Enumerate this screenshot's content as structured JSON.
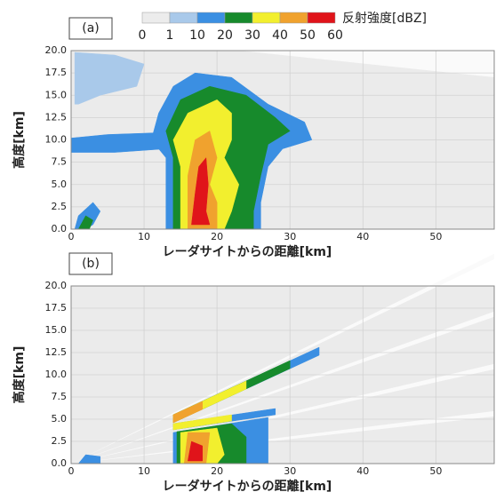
{
  "colorbar": {
    "title": "反射強度[dBZ]",
    "bounds": [
      0,
      1,
      10,
      20,
      30,
      40,
      50,
      60
    ],
    "colors": [
      "#ececec",
      "#a9c9ea",
      "#3b8fe2",
      "#178a2c",
      "#f2ef2e",
      "#f0a22e",
      "#e0141a"
    ]
  },
  "chart_data": [
    {
      "type": "rhi",
      "panel_label": "(a)",
      "xlabel": "レーダサイトからの距離[km]",
      "ylabel": "高度[km]",
      "xlim": [
        0,
        58
      ],
      "ylim": [
        0,
        20
      ],
      "xticks": [
        0,
        10,
        20,
        30,
        40,
        50
      ],
      "yticks": [
        {
          "value": 0,
          "label": "0.0"
        },
        2.5,
        {
          "value": 5,
          "label": "5.0"
        },
        7.5,
        {
          "value": 10,
          "label": "10.0"
        },
        12.5,
        {
          "value": 15,
          "label": "15.0"
        },
        17.5,
        {
          "value": 20,
          "label": "20.0"
        }
      ],
      "echoes": [
        {
          "level": 1,
          "points": [
            [
              0.5,
              14
            ],
            [
              0.5,
              19.8
            ],
            [
              6,
              19.5
            ],
            [
              10,
              18.5
            ],
            [
              9,
              16
            ],
            [
              4,
              15
            ],
            [
              1,
              14
            ]
          ]
        },
        {
          "level": 10,
          "points": [
            [
              0,
              8.6
            ],
            [
              0,
              10.2
            ],
            [
              5,
              10.6
            ],
            [
              12,
              10.8
            ],
            [
              13,
              9
            ],
            [
              6,
              8.6
            ]
          ]
        },
        {
          "level": 10,
          "points": [
            [
              13,
              0
            ],
            [
              13,
              8
            ],
            [
              11,
              10
            ],
            [
              12,
              13
            ],
            [
              14,
              16
            ],
            [
              17,
              17.5
            ],
            [
              22,
              17
            ],
            [
              27,
              14
            ],
            [
              32,
              12
            ],
            [
              33,
              10
            ],
            [
              29,
              9
            ],
            [
              27,
              7
            ],
            [
              26,
              3
            ],
            [
              26,
              0
            ]
          ]
        },
        {
          "level": 20,
          "points": [
            [
              14,
              0
            ],
            [
              14,
              8
            ],
            [
              13,
              11
            ],
            [
              15,
              14.5
            ],
            [
              19,
              16
            ],
            [
              24,
              15
            ],
            [
              28,
              12.5
            ],
            [
              30,
              11
            ],
            [
              27,
              9.5
            ],
            [
              26,
              6
            ],
            [
              25,
              2
            ],
            [
              25,
              0
            ]
          ]
        },
        {
          "level": 30,
          "points": [
            [
              15,
              0
            ],
            [
              15,
              7
            ],
            [
              14,
              10
            ],
            [
              16,
              13
            ],
            [
              20,
              14.5
            ],
            [
              22,
              13
            ],
            [
              22,
              10
            ],
            [
              21,
              8
            ],
            [
              23,
              5
            ],
            [
              22,
              2
            ],
            [
              21,
              0
            ]
          ]
        },
        {
          "level": 40,
          "points": [
            [
              16,
              0
            ],
            [
              16,
              6
            ],
            [
              17,
              10
            ],
            [
              19,
              11
            ],
            [
              20,
              8
            ],
            [
              19,
              5
            ],
            [
              20,
              3
            ],
            [
              20,
              0
            ]
          ]
        },
        {
          "level": 50,
          "points": [
            [
              16.5,
              0.5
            ],
            [
              17,
              4
            ],
            [
              17.5,
              7
            ],
            [
              18.5,
              8
            ],
            [
              18.8,
              5
            ],
            [
              18.5,
              2
            ],
            [
              19,
              0.5
            ]
          ]
        },
        {
          "level": 10,
          "points": [
            [
              0.5,
              0
            ],
            [
              1,
              1.5
            ],
            [
              3,
              3
            ],
            [
              4,
              2
            ],
            [
              3,
              0.5
            ],
            [
              2,
              0
            ]
          ]
        },
        {
          "level": 20,
          "points": [
            [
              1,
              0
            ],
            [
              2,
              1.5
            ],
            [
              3,
              1
            ],
            [
              2.5,
              0
            ]
          ]
        }
      ]
    },
    {
      "type": "rhi",
      "panel_label": "(b)",
      "xlabel": "レーダサイトからの距離[km]",
      "ylabel": "高度[km]",
      "xlim": [
        0,
        58
      ],
      "ylim": [
        0,
        20
      ],
      "xticks": [
        0,
        10,
        20,
        30,
        40,
        50
      ],
      "yticks": [
        {
          "value": 0,
          "label": "0.0"
        },
        2.5,
        {
          "value": 5,
          "label": "5.0"
        },
        7.5,
        {
          "value": 10,
          "label": "10.0"
        },
        12.5,
        {
          "value": 15,
          "label": "15.0"
        },
        17.5,
        {
          "value": 20,
          "label": "20.0"
        }
      ],
      "echoes": [
        {
          "level": 10,
          "points": [
            [
              14,
              0
            ],
            [
              14,
              3.5
            ],
            [
              27,
              5.2
            ],
            [
              27,
              0
            ]
          ]
        },
        {
          "level": 20,
          "points": [
            [
              14.5,
              0
            ],
            [
              14.5,
              3.6
            ],
            [
              22,
              4.5
            ],
            [
              24,
              3
            ],
            [
              24,
              0
            ]
          ]
        },
        {
          "level": 30,
          "points": [
            [
              15,
              0
            ],
            [
              15,
              3.5
            ],
            [
              20,
              4
            ],
            [
              21,
              1
            ],
            [
              20,
              0
            ]
          ]
        },
        {
          "level": 40,
          "points": [
            [
              15.5,
              0
            ],
            [
              16,
              3.5
            ],
            [
              19,
              3.5
            ],
            [
              18.5,
              0
            ]
          ]
        },
        {
          "level": 50,
          "points": [
            [
              16,
              0.3
            ],
            [
              16.5,
              2.5
            ],
            [
              18,
              2
            ],
            [
              18,
              0.3
            ]
          ]
        },
        {
          "level": 10,
          "points": [
            [
              14,
              3.8
            ],
            [
              28,
              5.5
            ],
            [
              28,
              6.2
            ],
            [
              14,
              4.5
            ]
          ]
        },
        {
          "level": 30,
          "points": [
            [
              14,
              3.8
            ],
            [
              22,
              4.8
            ],
            [
              22,
              5.5
            ],
            [
              14,
              4.5
            ]
          ]
        },
        {
          "level": 10,
          "points": [
            [
              14,
              4.6
            ],
            [
              34,
              12.2
            ],
            [
              34,
              13.1
            ],
            [
              14,
              5.5
            ]
          ]
        },
        {
          "level": 20,
          "points": [
            [
              14,
              4.6
            ],
            [
              30,
              10.7
            ],
            [
              30,
              11.6
            ],
            [
              14,
              5.5
            ]
          ]
        },
        {
          "level": 30,
          "points": [
            [
              14,
              4.6
            ],
            [
              24,
              8.4
            ],
            [
              24,
              9.3
            ],
            [
              14,
              5.5
            ]
          ]
        },
        {
          "level": 40,
          "points": [
            [
              14,
              4.6
            ],
            [
              18,
              6.1
            ],
            [
              18,
              7
            ],
            [
              14,
              5.5
            ]
          ]
        },
        {
          "level": 10,
          "points": [
            [
              1,
              0
            ],
            [
              2,
              1
            ],
            [
              4,
              0.8
            ],
            [
              4,
              0
            ]
          ]
        }
      ]
    }
  ]
}
